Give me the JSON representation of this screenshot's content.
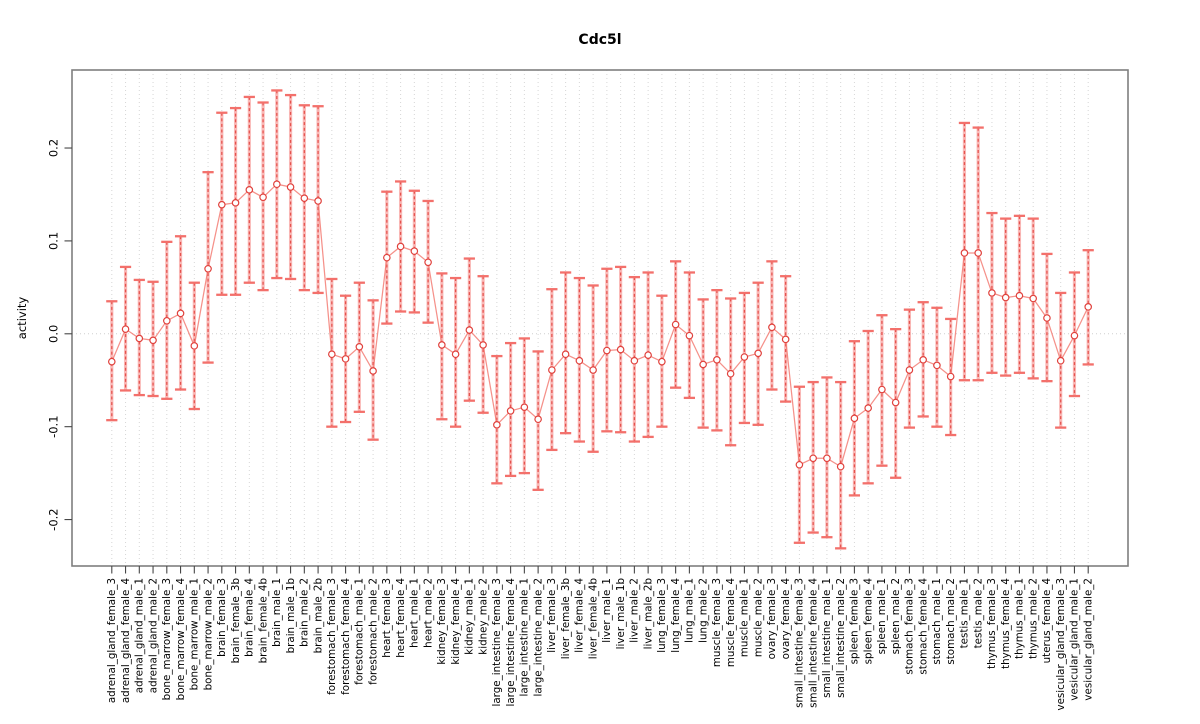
{
  "title": "Cdc5l",
  "ylabel": "activity",
  "colors": {
    "point_red": "#e0413c",
    "bar_pink": "#f9a8a5",
    "cap_red": "#f3706b",
    "line_salmon": "#f2766d",
    "grid_gray": "#d6d6d6",
    "zero_line_gray": "#cfcfcf",
    "box_gray": "#7f7f7f",
    "tick_gray": "#474747"
  },
  "chart_data": {
    "type": "scatter",
    "subtype": "points-with-error-bars",
    "title": "Cdc5l",
    "xlabel": "",
    "ylabel": "activity",
    "ylim": [
      -0.25,
      0.284
    ],
    "yticks": [
      0.2,
      0.1,
      0.0,
      -0.1,
      -0.2
    ],
    "ytick_labels": [
      "0.2",
      "0.1",
      "0.0",
      "-0.1",
      "-0.2"
    ],
    "grid": "dotted vertical gridline per category; dotted horizontal line at y=0",
    "legend": "none",
    "zero_line": 0,
    "categories": [
      "adrenal_gland_female_3",
      "adrenal_gland_female_4",
      "adrenal_gland_male_1",
      "adrenal_gland_male_2",
      "bone_marrow_female_3",
      "bone_marrow_female_4",
      "bone_marrow_male_1",
      "bone_marrow_male_2",
      "brain_female_3",
      "brain_female_3b",
      "brain_female_4",
      "brain_female_4b",
      "brain_male_1",
      "brain_male_1b",
      "brain_male_2",
      "brain_male_2b",
      "forestomach_female_3",
      "forestomach_female_4",
      "forestomach_male_1",
      "forestomach_male_2",
      "heart_female_3",
      "heart_female_4",
      "heart_male_1",
      "heart_male_2",
      "kidney_female_3",
      "kidney_female_4",
      "kidney_male_1",
      "kidney_male_2",
      "large_intestine_female_3",
      "large_intestine_female_4",
      "large_intestine_male_1",
      "large_intestine_male_2",
      "liver_female_3",
      "liver_female_3b",
      "liver_female_4",
      "liver_female_4b",
      "liver_male_1",
      "liver_male_1b",
      "liver_male_2",
      "liver_male_2b",
      "lung_female_3",
      "lung_female_4",
      "lung_male_1",
      "lung_male_2",
      "muscle_female_3",
      "muscle_female_4",
      "muscle_male_1",
      "muscle_male_2",
      "ovary_female_3",
      "ovary_female_4",
      "small_intestine_female_3",
      "small_intestine_female_4",
      "small_intestine_male_1",
      "small_intestine_male_2",
      "spleen_female_3",
      "spleen_female_4",
      "spleen_male_1",
      "spleen_male_2",
      "stomach_female_3",
      "stomach_female_4",
      "stomach_male_1",
      "stomach_male_2",
      "testis_male_1",
      "testis_male_2",
      "thymus_female_3",
      "thymus_female_4",
      "thymus_male_1",
      "thymus_male_2",
      "uterus_female_4",
      "vesicular_gland_female_3",
      "vesicular_gland_male_1",
      "vesicular_gland_male_2"
    ],
    "series": [
      {
        "name": "activity",
        "values": [
          -0.03,
          0.005,
          -0.005,
          -0.007,
          0.014,
          0.022,
          -0.013,
          0.07,
          0.139,
          0.141,
          0.155,
          0.147,
          0.161,
          0.158,
          0.146,
          0.143,
          -0.022,
          -0.027,
          -0.014,
          -0.04,
          0.082,
          0.094,
          0.089,
          0.077,
          -0.012,
          -0.022,
          0.004,
          -0.012,
          -0.098,
          -0.083,
          -0.079,
          -0.092,
          -0.039,
          -0.022,
          -0.029,
          -0.039,
          -0.018,
          -0.017,
          -0.029,
          -0.023,
          -0.03,
          0.01,
          -0.002,
          -0.033,
          -0.028,
          -0.043,
          -0.025,
          -0.021,
          0.007,
          -0.006,
          -0.141,
          -0.134,
          -0.134,
          -0.143,
          -0.091,
          -0.08,
          -0.06,
          -0.074,
          -0.039,
          -0.028,
          -0.034,
          -0.046,
          0.087,
          0.087,
          0.044,
          0.039,
          0.041,
          0.038,
          0.017,
          -0.029,
          -0.002,
          0.029
        ]
      },
      {
        "name": "ci_lower",
        "values": [
          -0.093,
          -0.061,
          -0.066,
          -0.067,
          -0.07,
          -0.06,
          -0.081,
          -0.031,
          0.042,
          0.042,
          0.055,
          0.047,
          0.06,
          0.059,
          0.047,
          0.044,
          -0.1,
          -0.095,
          -0.084,
          -0.114,
          0.011,
          0.024,
          0.023,
          0.012,
          -0.092,
          -0.1,
          -0.072,
          -0.085,
          -0.161,
          -0.153,
          -0.15,
          -0.168,
          -0.125,
          -0.107,
          -0.116,
          -0.127,
          -0.105,
          -0.106,
          -0.116,
          -0.111,
          -0.1,
          -0.058,
          -0.069,
          -0.101,
          -0.104,
          -0.12,
          -0.096,
          -0.098,
          -0.06,
          -0.073,
          -0.225,
          -0.214,
          -0.219,
          -0.231,
          -0.174,
          -0.161,
          -0.142,
          -0.155,
          -0.101,
          -0.089,
          -0.1,
          -0.109,
          -0.05,
          -0.05,
          -0.042,
          -0.045,
          -0.042,
          -0.048,
          -0.051,
          -0.101,
          -0.067,
          -0.033
        ]
      },
      {
        "name": "ci_upper",
        "values": [
          0.035,
          0.072,
          0.058,
          0.056,
          0.099,
          0.105,
          0.055,
          0.174,
          0.238,
          0.243,
          0.255,
          0.249,
          0.262,
          0.257,
          0.246,
          0.245,
          0.059,
          0.041,
          0.055,
          0.036,
          0.153,
          0.164,
          0.154,
          0.143,
          0.065,
          0.06,
          0.081,
          0.062,
          -0.024,
          -0.01,
          -0.005,
          -0.019,
          0.048,
          0.066,
          0.06,
          0.052,
          0.07,
          0.072,
          0.061,
          0.066,
          0.041,
          0.078,
          0.066,
          0.037,
          0.047,
          0.038,
          0.044,
          0.055,
          0.078,
          0.062,
          -0.057,
          -0.052,
          -0.047,
          -0.052,
          -0.008,
          0.003,
          0.02,
          0.005,
          0.026,
          0.034,
          0.028,
          0.016,
          0.227,
          0.222,
          0.13,
          0.124,
          0.127,
          0.124,
          0.086,
          0.044,
          0.066,
          0.09
        ]
      }
    ]
  }
}
